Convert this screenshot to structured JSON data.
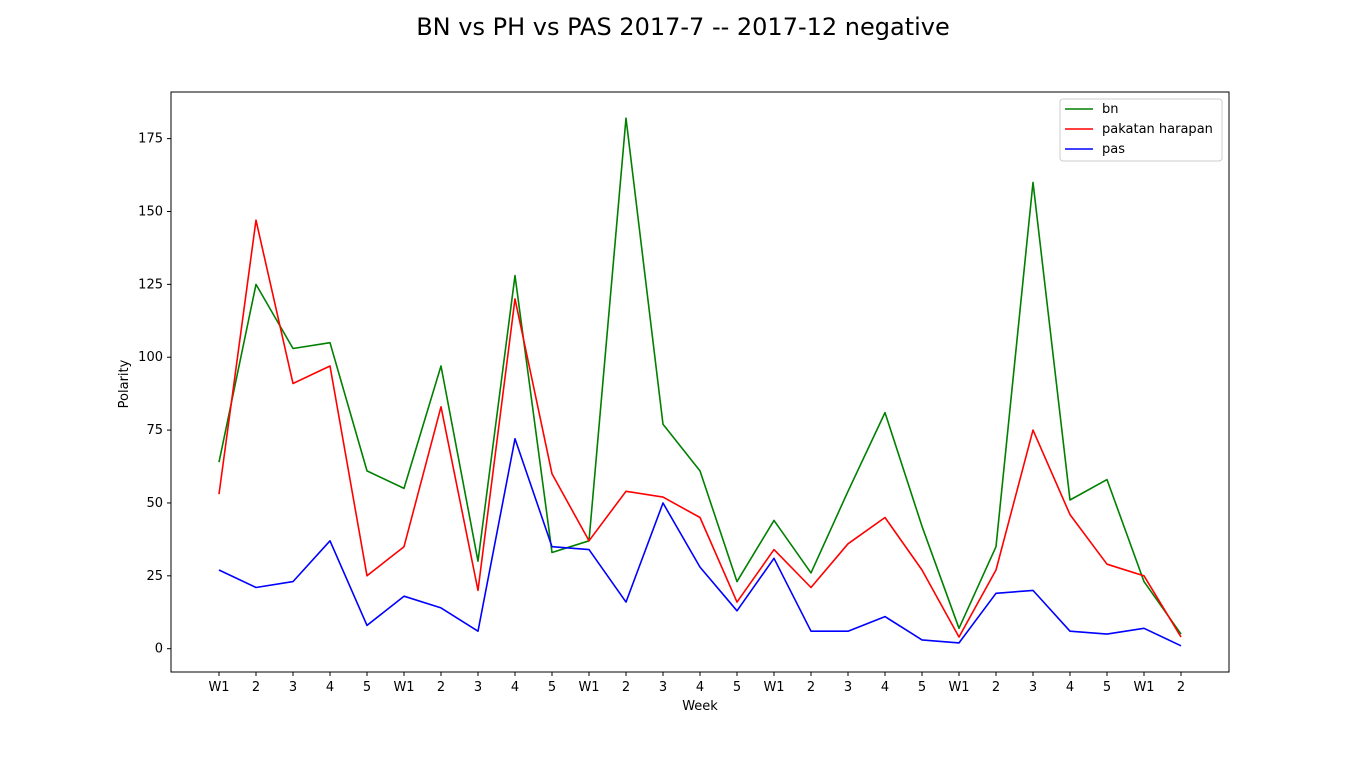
{
  "chart_data": {
    "type": "line",
    "title": "BN vs PH vs PAS 2017-7 -- 2017-12 negative",
    "xlabel": "Week",
    "ylabel": "Polarity",
    "categories": [
      "W1",
      "2",
      "3",
      "4",
      "5",
      "W1",
      "2",
      "3",
      "4",
      "5",
      "W1",
      "2",
      "3",
      "4",
      "5",
      "W1",
      "2",
      "3",
      "4",
      "5",
      "W1",
      "2",
      "3",
      "4",
      "5",
      "W1",
      "2"
    ],
    "yticks": [
      0,
      25,
      50,
      75,
      100,
      125,
      150,
      175
    ],
    "ylim": [
      -8,
      191
    ],
    "grid": false,
    "legend_position": "top-right",
    "series": [
      {
        "name": "bn",
        "color": "#008000",
        "values": [
          64,
          125,
          103,
          105,
          61,
          55,
          97,
          30,
          128,
          33,
          37,
          182,
          77,
          61,
          23,
          44,
          26,
          54,
          81,
          42,
          7,
          35,
          160,
          51,
          58,
          23,
          5
        ]
      },
      {
        "name": "pakatan harapan",
        "color": "#ff0000",
        "values": [
          53,
          147,
          91,
          97,
          25,
          35,
          83,
          20,
          120,
          60,
          37,
          54,
          52,
          45,
          16,
          34,
          21,
          36,
          45,
          27,
          4,
          27,
          75,
          46,
          29,
          25,
          4
        ]
      },
      {
        "name": "pas",
        "color": "#0000ff",
        "values": [
          27,
          21,
          23,
          37,
          8,
          18,
          14,
          6,
          72,
          35,
          34,
          16,
          50,
          28,
          13,
          31,
          6,
          6,
          11,
          3,
          2,
          19,
          20,
          6,
          5,
          7,
          1
        ]
      }
    ]
  }
}
